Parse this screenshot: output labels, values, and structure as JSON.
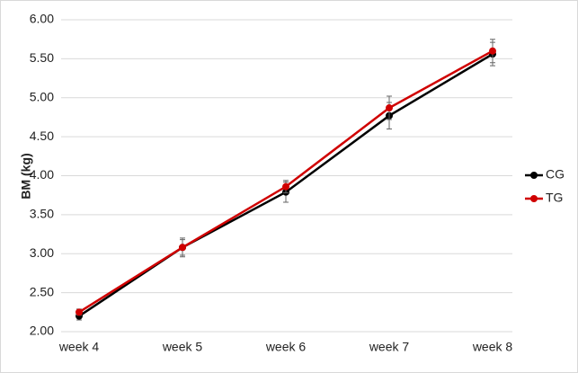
{
  "chart_data": {
    "type": "line",
    "y_label": "BM (kg)",
    "categories": [
      "week 4",
      "week 5",
      "week 6",
      "week 7",
      "week 8"
    ],
    "series": [
      {
        "name": "CG",
        "color": "#000000",
        "values": [
          2.2,
          3.08,
          3.79,
          4.77,
          5.56
        ],
        "errors": [
          0.05,
          0.1,
          0.13,
          0.17,
          0.15
        ]
      },
      {
        "name": "TG",
        "color": "#d00000",
        "values": [
          2.25,
          3.08,
          3.86,
          4.87,
          5.6
        ],
        "errors": [
          0.04,
          0.12,
          0.08,
          0.15,
          0.15
        ]
      }
    ],
    "ylim": [
      2,
      6
    ],
    "yticks": [
      {
        "value": 2,
        "label": "2.00"
      },
      {
        "value": 2.5,
        "label": "2.50"
      },
      {
        "value": 3,
        "label": "3.00"
      },
      {
        "value": 3.5,
        "label": "3.50"
      },
      {
        "value": 4,
        "label": "4.00"
      },
      {
        "value": 4.5,
        "label": "4.50"
      },
      {
        "value": 5,
        "label": "5.00"
      },
      {
        "value": 5.5,
        "label": "5.50"
      },
      {
        "value": 6,
        "label": "6.00"
      }
    ],
    "grid": true,
    "legend": "right"
  }
}
